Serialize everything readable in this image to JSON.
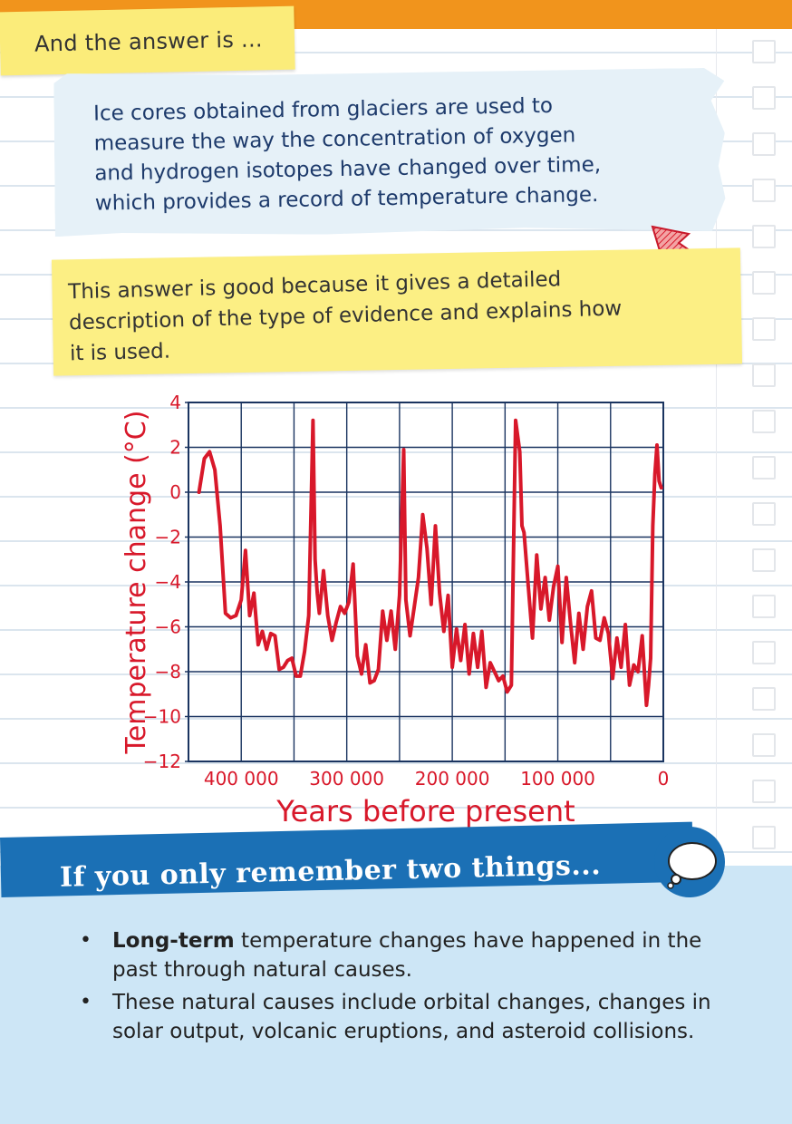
{
  "note": {
    "label": "And the answer is ..."
  },
  "answer": {
    "lines": [
      "Ice cores obtained from glaciers are used to",
      "measure the way the concentration of oxygen",
      "and hydrogen isotopes have changed over time,",
      "which provides a record of temperature change."
    ]
  },
  "comment": {
    "lines": [
      "This answer is good because it gives a detailed",
      "description of the type of evidence and explains how",
      "it is used."
    ]
  },
  "colors": {
    "accent_orange": "#f1941c",
    "note_yellow": "#fbec7a",
    "line_red": "#d8182a",
    "banner_blue": "#1b70b5",
    "panel_blue": "#cde6f6",
    "answer_text": "#1d3a6b"
  },
  "icons": {
    "arrow": "arrow-icon",
    "speech": "speech-bubble-icon"
  },
  "chart_data": {
    "type": "line",
    "xlabel": "Years before present",
    "ylabel": "Temperature change (°C)",
    "x_ticks": [
      "400 000",
      "300 000",
      "200 000",
      "100 000",
      "0"
    ],
    "y_ticks": [
      "4",
      "2",
      "0",
      "−2",
      "−4",
      "−6",
      "−8",
      "−10",
      "−12"
    ],
    "xlim": [
      450000,
      0
    ],
    "ylim": [
      -12,
      4
    ],
    "grid": true,
    "x_reversed": true,
    "series": [
      {
        "x": [
          440000,
          435000,
          430000,
          425000,
          420000,
          415000,
          410000,
          405000,
          400000,
          396000,
          392000,
          388000,
          384000,
          380000,
          376000,
          372000,
          368000,
          364000,
          360000,
          356000,
          352000,
          348000,
          344000,
          340000,
          336000,
          332000,
          330000,
          328000,
          326000,
          322000,
          318000,
          314000,
          310000,
          306000,
          302000,
          298000,
          294000,
          290000,
          286000,
          282000,
          278000,
          274000,
          270000,
          266000,
          262000,
          258000,
          254000,
          250000,
          246000,
          244000,
          240000,
          236000,
          232000,
          228000,
          224000,
          220000,
          216000,
          212000,
          208000,
          204000,
          200000,
          196000,
          192000,
          188000,
          184000,
          180000,
          176000,
          172000,
          168000,
          164000,
          160000,
          156000,
          152000,
          148000,
          144000,
          140000,
          136000,
          134000,
          132000,
          128000,
          124000,
          120000,
          116000,
          112000,
          108000,
          104000,
          100000,
          96000,
          92000,
          88000,
          84000,
          80000,
          76000,
          72000,
          68000,
          64000,
          60000,
          56000,
          52000,
          48000,
          44000,
          40000,
          36000,
          32000,
          28000,
          24000,
          20000,
          16000,
          14000,
          12000,
          10000,
          8000,
          6000,
          4000,
          2000
        ],
        "y": [
          0,
          1.5,
          1.8,
          1.0,
          -1.5,
          -5.4,
          -5.6,
          -5.5,
          -4.8,
          -2.6,
          -5.5,
          -4.5,
          -6.8,
          -6.2,
          -7.0,
          -6.3,
          -6.4,
          -7.9,
          -7.8,
          -7.5,
          -7.4,
          -8.2,
          -8.2,
          -7.1,
          -5.5,
          3.2,
          -3.0,
          -4.5,
          -5.4,
          -3.5,
          -5.5,
          -6.6,
          -5.8,
          -5.1,
          -5.4,
          -4.9,
          -3.2,
          -7.3,
          -8.1,
          -6.8,
          -8.5,
          -8.4,
          -7.9,
          -5.3,
          -6.6,
          -5.3,
          -7.0,
          -4.6,
          1.9,
          -4.8,
          -6.4,
          -5.1,
          -3.8,
          -1.0,
          -2.5,
          -5.0,
          -1.5,
          -4.5,
          -6.2,
          -4.6,
          -7.8,
          -6.1,
          -7.5,
          -5.9,
          -8.1,
          -6.3,
          -7.8,
          -6.2,
          -8.7,
          -7.6,
          -8.0,
          -8.4,
          -8.2,
          -8.9,
          -8.6,
          3.2,
          1.8,
          -1.5,
          -1.8,
          -4.2,
          -6.5,
          -2.8,
          -5.2,
          -3.8,
          -5.7,
          -4.2,
          -3.3,
          -6.7,
          -3.8,
          -5.8,
          -7.6,
          -5.4,
          -7.0,
          -5.1,
          -4.4,
          -6.5,
          -6.6,
          -5.6,
          -6.3,
          -8.3,
          -6.5,
          -7.8,
          -5.9,
          -8.6,
          -7.7,
          -8.0,
          -6.4,
          -9.5,
          -8.6,
          -7.4,
          -1.5,
          0.8,
          2.1,
          0.5,
          0.2
        ]
      }
    ]
  },
  "things": {
    "title": "If you only remember two things...",
    "items": [
      {
        "bold": "Long-term",
        "rest": " temperature changes have happened in the past through natural causes."
      },
      {
        "bold": "",
        "rest": "These natural causes include orbital changes, changes in solar output, volcanic eruptions, and asteroid collisions."
      }
    ]
  }
}
